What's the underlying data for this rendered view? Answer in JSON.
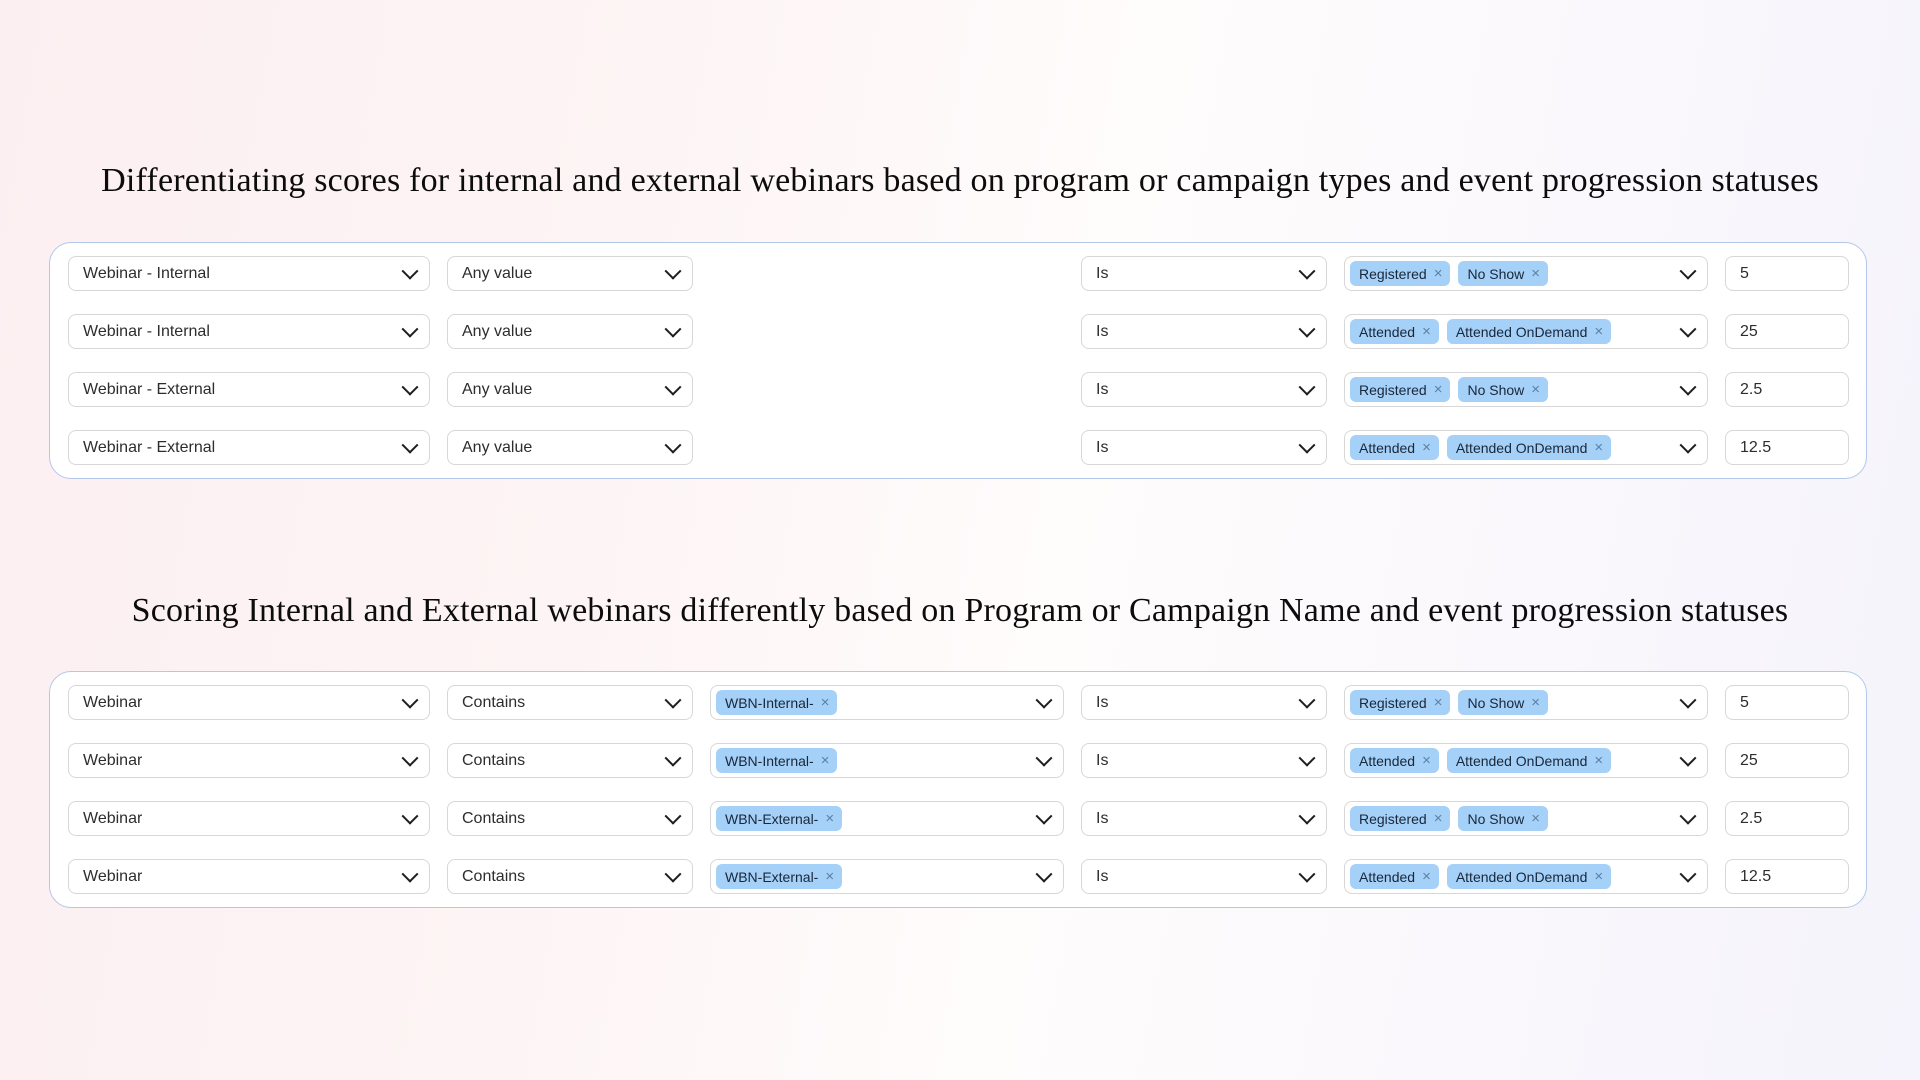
{
  "ui": {
    "remove_icon": "×"
  },
  "colors": {
    "pill_bg": "#a5d0f7",
    "panel_border": "#b3c7ea",
    "control_border": "#d7d7d7",
    "background_pink": "#fceff1",
    "background_lavender": "#f5f3fb"
  },
  "sections": [
    {
      "heading": "Differentiating scores for internal and external webinars based on program or campaign types and event progression statuses",
      "rows": [
        {
          "program_type": "Webinar - Internal",
          "attribute": "Any value",
          "operator": "Is",
          "statuses": [
            "Registered",
            "No Show"
          ],
          "score": "5"
        },
        {
          "program_type": "Webinar - Internal",
          "attribute": "Any value",
          "operator": "Is",
          "statuses": [
            "Attended",
            "Attended OnDemand"
          ],
          "score": "25"
        },
        {
          "program_type": "Webinar - External",
          "attribute": "Any value",
          "operator": "Is",
          "statuses": [
            "Registered",
            "No Show"
          ],
          "score": "2.5"
        },
        {
          "program_type": "Webinar - External",
          "attribute": "Any value",
          "operator": "Is",
          "statuses": [
            "Attended",
            "Attended OnDemand"
          ],
          "score": "12.5"
        }
      ]
    },
    {
      "heading": "Scoring Internal and External webinars differently based on Program or Campaign Name and event progression statuses",
      "rows": [
        {
          "field": "Webinar",
          "condition": "Contains",
          "name_filters": [
            "WBN-Internal-"
          ],
          "operator": "Is",
          "statuses": [
            "Registered",
            "No Show"
          ],
          "score": "5"
        },
        {
          "field": "Webinar",
          "condition": "Contains",
          "name_filters": [
            "WBN-Internal-"
          ],
          "operator": "Is",
          "statuses": [
            "Attended",
            "Attended OnDemand"
          ],
          "score": "25"
        },
        {
          "field": "Webinar",
          "condition": "Contains",
          "name_filters": [
            "WBN-External-"
          ],
          "operator": "Is",
          "statuses": [
            "Registered",
            "No Show"
          ],
          "score": "2.5"
        },
        {
          "field": "Webinar",
          "condition": "Contains",
          "name_filters": [
            "WBN-External-"
          ],
          "operator": "Is",
          "statuses": [
            "Attended",
            "Attended OnDemand"
          ],
          "score": "12.5"
        }
      ]
    }
  ]
}
